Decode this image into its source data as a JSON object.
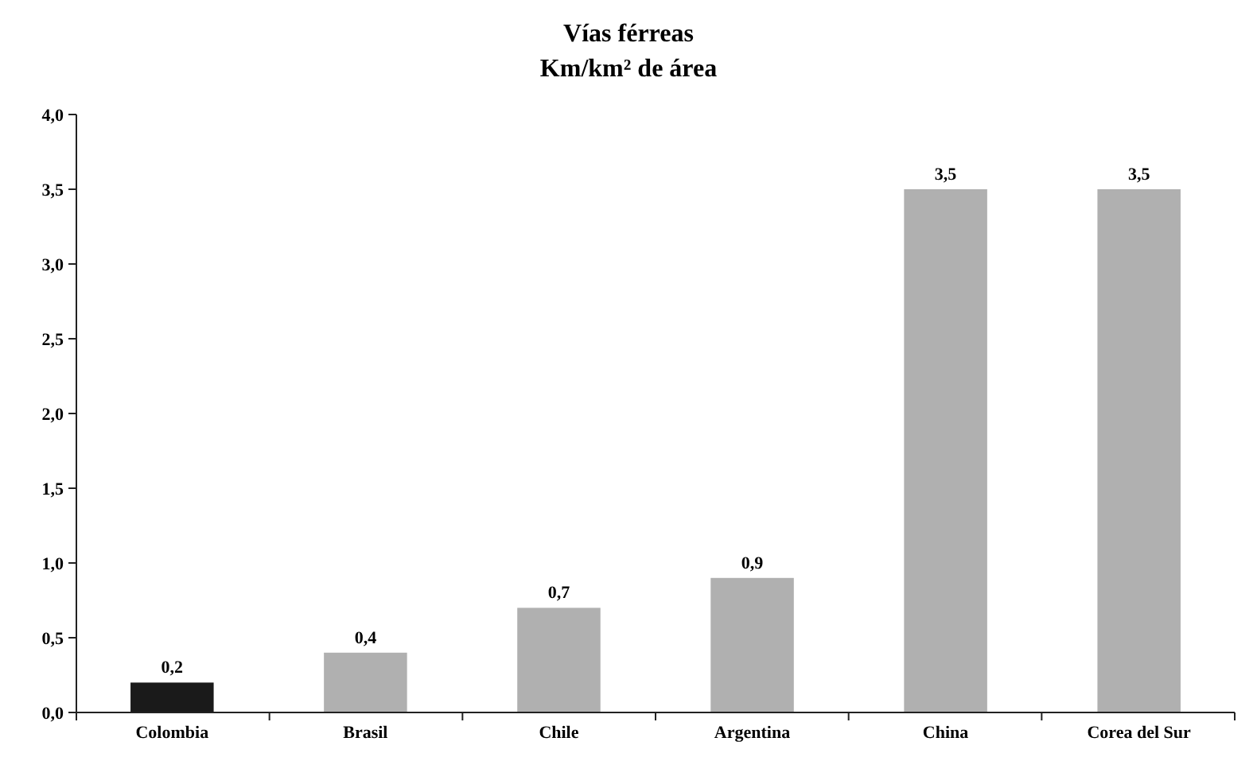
{
  "chart_data": {
    "type": "bar",
    "title": "Vías férreas",
    "subtitle": "Km/km² de área",
    "categories": [
      "Colombia",
      "Brasil",
      "Chile",
      "Argentina",
      "China",
      "Corea del Sur"
    ],
    "values": [
      0.2,
      0.4,
      0.7,
      0.9,
      3.5,
      3.5
    ],
    "colors": [
      "#1a1a1a",
      "#b0b0b0",
      "#b0b0b0",
      "#b0b0b0",
      "#b0b0b0",
      "#b0b0b0"
    ],
    "value_labels": [
      "0,2",
      "0,4",
      "0,7",
      "0,9",
      "3,5",
      "3,5"
    ],
    "ylim": [
      0,
      4
    ],
    "yticks": [
      {
        "value": 0,
        "label": "0,0"
      },
      {
        "value": 0.5,
        "label": "0,5"
      },
      {
        "value": 1,
        "label": "1,0"
      },
      {
        "value": 1.5,
        "label": "1,5"
      },
      {
        "value": 2,
        "label": "2,0"
      },
      {
        "value": 2.5,
        "label": "2,5"
      },
      {
        "value": 3,
        "label": "3,0"
      },
      {
        "value": 3.5,
        "label": "3,5"
      },
      {
        "value": 4,
        "label": "4,0"
      }
    ],
    "grid": false
  }
}
